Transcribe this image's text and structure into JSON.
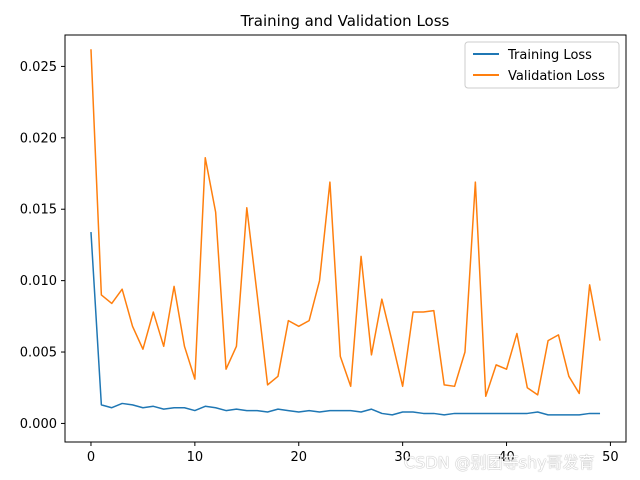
{
  "chart_data": {
    "type": "line",
    "title": "Training and Validation Loss",
    "xlabel": "",
    "ylabel": "",
    "xlim": [
      -2.5,
      51.5
    ],
    "ylim": [
      -0.0013,
      0.0272
    ],
    "xticks": [
      0,
      10,
      20,
      30,
      40,
      50
    ],
    "yticks": [
      0.0,
      0.005,
      0.01,
      0.015,
      0.02,
      0.025
    ],
    "ytick_labels": [
      "0.000",
      "0.005",
      "0.010",
      "0.015",
      "0.020",
      "0.025"
    ],
    "xtick_labels": [
      "0",
      "10",
      "20",
      "30",
      "40",
      "50"
    ],
    "grid": false,
    "legend_position": "top-right",
    "series": [
      {
        "name": "Training Loss",
        "color": "#1f77b4",
        "x": [
          0,
          1,
          2,
          3,
          4,
          5,
          6,
          7,
          8,
          9,
          10,
          11,
          12,
          13,
          14,
          15,
          16,
          17,
          18,
          19,
          20,
          21,
          22,
          23,
          24,
          25,
          26,
          27,
          28,
          29,
          30,
          31,
          32,
          33,
          34,
          35,
          36,
          37,
          38,
          39,
          40,
          41,
          42,
          43,
          44,
          45,
          46,
          47,
          48,
          49
        ],
        "values": [
          0.0134,
          0.0013,
          0.0011,
          0.0014,
          0.0013,
          0.0011,
          0.0012,
          0.001,
          0.0011,
          0.0011,
          0.0009,
          0.0012,
          0.0011,
          0.0009,
          0.001,
          0.0009,
          0.0009,
          0.0008,
          0.001,
          0.0009,
          0.0008,
          0.0009,
          0.0008,
          0.0009,
          0.0009,
          0.0009,
          0.0008,
          0.001,
          0.0007,
          0.0006,
          0.0008,
          0.0008,
          0.0007,
          0.0007,
          0.0006,
          0.0007,
          0.0007,
          0.0007,
          0.0007,
          0.0007,
          0.0007,
          0.0007,
          0.0007,
          0.0008,
          0.0006,
          0.0006,
          0.0006,
          0.0006,
          0.0007,
          0.0007
        ]
      },
      {
        "name": "Validation Loss",
        "color": "#ff7f0e",
        "x": [
          0,
          1,
          2,
          3,
          4,
          5,
          6,
          7,
          8,
          9,
          10,
          11,
          12,
          13,
          14,
          15,
          16,
          17,
          18,
          19,
          20,
          21,
          22,
          23,
          24,
          25,
          26,
          27,
          28,
          29,
          30,
          31,
          32,
          33,
          34,
          35,
          36,
          37,
          38,
          39,
          40,
          41,
          42,
          43,
          44,
          45,
          46,
          47,
          48,
          49
        ],
        "values": [
          0.0262,
          0.009,
          0.0084,
          0.0094,
          0.0068,
          0.0052,
          0.0078,
          0.0054,
          0.0096,
          0.0054,
          0.0031,
          0.0186,
          0.0148,
          0.0038,
          0.0054,
          0.0151,
          0.009,
          0.0027,
          0.0033,
          0.0072,
          0.0068,
          0.0072,
          0.01,
          0.0169,
          0.0047,
          0.0026,
          0.0117,
          0.0048,
          0.0087,
          0.0057,
          0.0026,
          0.0078,
          0.0078,
          0.0079,
          0.0027,
          0.0026,
          0.005,
          0.0169,
          0.0019,
          0.0041,
          0.0038,
          0.0063,
          0.0025,
          0.002,
          0.0058,
          0.0062,
          0.0033,
          0.0021,
          0.0097,
          0.0058
        ]
      }
    ]
  },
  "watermark": "CSDN @别团等shy哥发育"
}
